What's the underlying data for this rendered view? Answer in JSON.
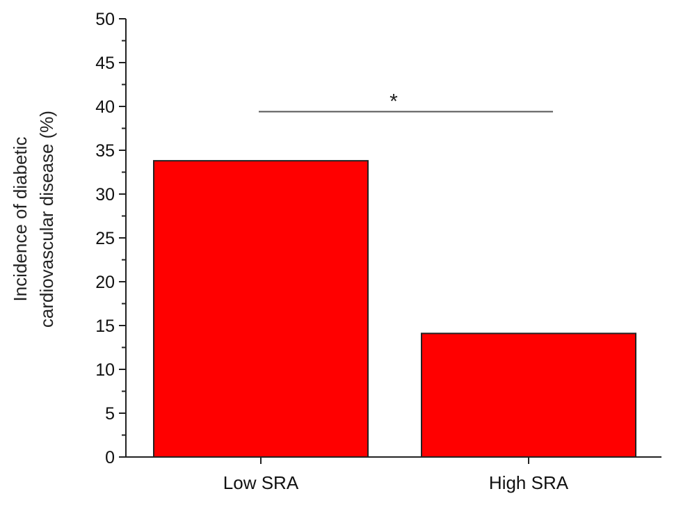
{
  "chart_data": {
    "type": "bar",
    "categories": [
      "Low SRA",
      "High SRA"
    ],
    "values": [
      33.8,
      14.1
    ],
    "ylabel_lines": [
      "Incidence of diabetic",
      "cardiovascular disease (%)"
    ],
    "xlabel": "",
    "ylim": [
      0,
      50
    ],
    "y_ticks": [
      0,
      5,
      10,
      15,
      20,
      25,
      30,
      35,
      40,
      45,
      50
    ],
    "y_tick_labels": [
      "0",
      "5",
      "10",
      "15",
      "20",
      "25",
      "30",
      "35",
      "40",
      "45",
      "50"
    ],
    "grid": false,
    "legend": "none",
    "bar_color": "#ff0000",
    "annotation": {
      "text": "*",
      "y_value": 39.4,
      "between": [
        "Low SRA",
        "High SRA"
      ]
    }
  }
}
